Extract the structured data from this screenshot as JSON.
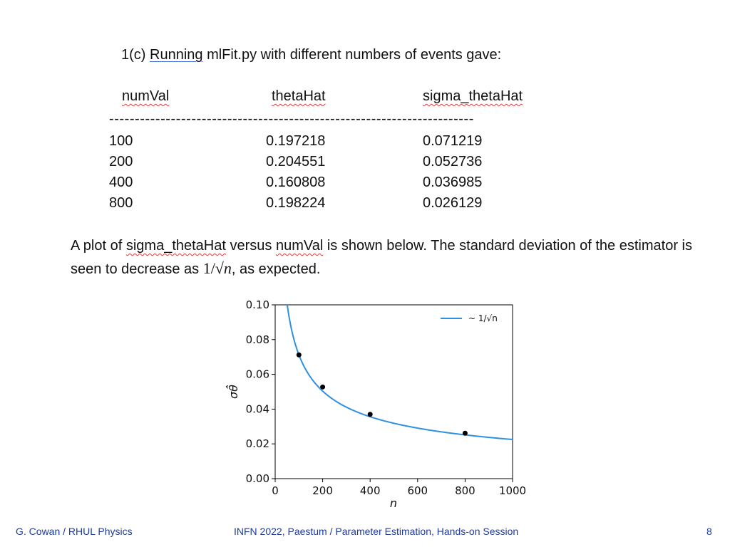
{
  "heading": {
    "prefix": "1(c) ",
    "underlined": "Running",
    "rest": " mlFit.py with different numbers of events gave:"
  },
  "table": {
    "headers": [
      "numVal",
      "thetaHat",
      "sigma_thetaHat"
    ],
    "separator": "-----------------------------------------------------------------------",
    "rows": [
      [
        "100",
        "0.197218",
        "0.071219"
      ],
      [
        "200",
        "0.204551",
        "0.052736"
      ],
      [
        "400",
        "0.160808",
        "0.036985"
      ],
      [
        "800",
        "0.198224",
        "0.026129"
      ]
    ]
  },
  "paragraph": {
    "t1": "A plot of ",
    "w1": "sigma_thetaHat",
    "t2": " versus ",
    "w2": "numVal",
    "t3": " is shown below.  The standard deviation of the estimator is seen to decrease as ",
    "math_num": "1/√",
    "math_var": "n",
    "t4": ", as expected."
  },
  "chart_data": {
    "type": "scatter",
    "xlabel": "n",
    "ylabel": "σθ̂",
    "xlim": [
      0,
      1000
    ],
    "ylim": [
      0,
      0.1
    ],
    "xticks": [
      "0",
      "200",
      "400",
      "600",
      "800",
      "1000"
    ],
    "yticks": [
      "0.00",
      "0.02",
      "0.04",
      "0.06",
      "0.08",
      "0.10"
    ],
    "grid": false,
    "legend_position": "top-right",
    "points": {
      "x": [
        100,
        200,
        400,
        800
      ],
      "y": [
        0.071219,
        0.052736,
        0.036985,
        0.026129
      ]
    },
    "curve": {
      "name": "~ 1/√n",
      "formula": "0.71219 / sqrt(n)",
      "coefficient": 0.71219
    },
    "point_color": "#000000",
    "curve_color": "#2f8fe0"
  },
  "footer": {
    "left": "G. Cowan / RHUL Physics",
    "center": "INFN 2022, Paestum / Parameter Estimation, Hands-on Session",
    "page": "8"
  }
}
